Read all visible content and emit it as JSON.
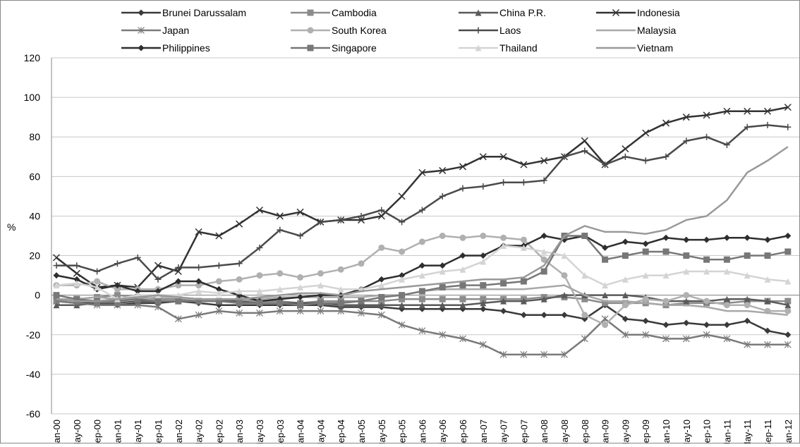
{
  "chart_data": {
    "type": "line",
    "y_label": "%",
    "categories": [
      "Jan-00",
      "May-00",
      "Sep-00",
      "Jan-01",
      "May-01",
      "Sep-01",
      "Jan-02",
      "May-02",
      "Sep-02",
      "Jan-03",
      "May-03",
      "Sep-03",
      "Jan-04",
      "May-04",
      "Sep-04",
      "Jan-05",
      "May-05",
      "Sep-05",
      "Jan-06",
      "May-06",
      "Sep-06",
      "Jan-07",
      "May-07",
      "Sep-07",
      "Jan-08",
      "May-08",
      "Sep-08",
      "Jan-09",
      "May-09",
      "Sep-09",
      "Jan-10",
      "May-10",
      "Sep-10",
      "Jan-11",
      "May-11",
      "Sep-11",
      "Jan-12"
    ],
    "ylim": [
      -60,
      120
    ],
    "yticks": [
      -60,
      -40,
      -20,
      0,
      20,
      40,
      60,
      80,
      100,
      120
    ],
    "grid": true,
    "legend": "top",
    "series": [
      {
        "name": "Brunei Darussalam",
        "color": "#3a3a3a",
        "marker": "diamond",
        "values": [
          -3,
          -4,
          -4,
          -5,
          -4,
          -4,
          -3,
          -4,
          -5,
          -5,
          -5,
          -5,
          -5,
          -5,
          -6,
          -6,
          -6,
          -7,
          -7,
          -7,
          -7,
          -7,
          -8,
          -10,
          -10,
          -10,
          -12,
          -5,
          -12,
          -13,
          -15,
          -14,
          -15,
          -15,
          -13,
          -18,
          -20
        ]
      },
      {
        "name": "Cambodia",
        "color": "#8c8c8c",
        "marker": "square",
        "values": [
          -3,
          -2,
          -1,
          0,
          -1,
          -2,
          -2,
          -3,
          -3,
          -2,
          -3,
          -3,
          -4,
          -3,
          -3,
          -3,
          -3,
          -2,
          -2,
          -2,
          -2,
          -2,
          -2,
          -2,
          -1,
          -1,
          -2,
          -4,
          -4,
          -4,
          -5,
          -4,
          -4,
          -4,
          -3,
          -3,
          -3
        ]
      },
      {
        "name": "China P.R.",
        "color": "#5a5a5a",
        "marker": "triangle",
        "values": [
          -5,
          -5,
          -4,
          -4,
          -3,
          -3,
          -3,
          -3,
          -3,
          -3,
          -4,
          -4,
          -4,
          -4,
          -5,
          -5,
          -5,
          -5,
          -5,
          -5,
          -5,
          -4,
          -3,
          -3,
          -2,
          0,
          0,
          0,
          0,
          -1,
          -3,
          -3,
          -3,
          -2,
          -2,
          -3,
          -5
        ]
      },
      {
        "name": "Indonesia",
        "color": "#333333",
        "marker": "x",
        "values": [
          19,
          11,
          4,
          5,
          4,
          15,
          12,
          32,
          30,
          36,
          43,
          40,
          42,
          37,
          38,
          38,
          40,
          50,
          62,
          63,
          65,
          70,
          70,
          66,
          68,
          70,
          78,
          66,
          74,
          82,
          87,
          90,
          91,
          93,
          93,
          93,
          95
        ]
      },
      {
        "name": "Japan",
        "color": "#7a7a7a",
        "marker": "asterisk",
        "values": [
          -3,
          -4,
          -5,
          -5,
          -5,
          -6,
          -12,
          -10,
          -8,
          -9,
          -9,
          -8,
          -8,
          -8,
          -8,
          -9,
          -10,
          -15,
          -18,
          -20,
          -22,
          -25,
          -30,
          -30,
          -30,
          -30,
          -22,
          -12,
          -20,
          -20,
          -22,
          -22,
          -20,
          -22,
          -25,
          -25,
          -25
        ]
      },
      {
        "name": "South Korea",
        "color": "#b0b0b0",
        "marker": "circle",
        "values": [
          5,
          5,
          7,
          3,
          3,
          3,
          5,
          5,
          7,
          8,
          10,
          11,
          9,
          11,
          13,
          16,
          24,
          22,
          27,
          30,
          29,
          30,
          29,
          28,
          18,
          10,
          -10,
          -15,
          -5,
          -2,
          -3,
          0,
          -3,
          -5,
          -5,
          -8,
          -8
        ]
      },
      {
        "name": "Laos",
        "color": "#4a4a4a",
        "marker": "plus",
        "values": [
          15,
          15,
          12,
          16,
          19,
          8,
          14,
          14,
          15,
          16,
          24,
          33,
          30,
          37,
          38,
          40,
          43,
          37,
          43,
          50,
          54,
          55,
          57,
          57,
          58,
          70,
          73,
          66,
          70,
          68,
          70,
          78,
          80,
          76,
          85,
          86,
          85
        ]
      },
      {
        "name": "Malaysia",
        "color": "#a8a8a8",
        "marker": "none",
        "values": [
          -2,
          -2,
          -1,
          -2,
          -2,
          -1,
          -1,
          -2,
          -2,
          -2,
          -2,
          -1,
          -1,
          -1,
          -1,
          -1,
          0,
          0,
          2,
          3,
          3,
          3,
          3,
          3,
          4,
          5,
          0,
          -3,
          -3,
          -4,
          -5,
          -5,
          -6,
          -8,
          -8,
          -9,
          -10
        ]
      },
      {
        "name": "Philippines",
        "color": "#2e2e2e",
        "marker": "diamond",
        "values": [
          10,
          8,
          3,
          5,
          2,
          2,
          7,
          7,
          3,
          0,
          -3,
          -2,
          -1,
          0,
          0,
          3,
          8,
          10,
          15,
          15,
          20,
          20,
          25,
          25,
          30,
          28,
          30,
          24,
          27,
          26,
          29,
          28,
          28,
          29,
          29,
          28,
          30
        ]
      },
      {
        "name": "Singapore",
        "color": "#777777",
        "marker": "square",
        "values": [
          0,
          -2,
          -3,
          -3,
          -2,
          -3,
          -3,
          -3,
          -3,
          -4,
          -4,
          -4,
          -5,
          -4,
          -4,
          -3,
          -1,
          0,
          2,
          4,
          5,
          5,
          6,
          7,
          12,
          30,
          30,
          18,
          20,
          22,
          22,
          20,
          18,
          18,
          20,
          20,
          22
        ]
      },
      {
        "name": "Thailand",
        "color": "#d4d4d4",
        "marker": "triangle",
        "values": [
          5,
          6,
          4,
          -2,
          0,
          0,
          0,
          2,
          1,
          2,
          2,
          3,
          4,
          5,
          3,
          3,
          5,
          8,
          10,
          12,
          13,
          17,
          25,
          24,
          22,
          20,
          10,
          5,
          8,
          10,
          10,
          12,
          12,
          12,
          10,
          8,
          7
        ]
      },
      {
        "name": "Vietnam",
        "color": "#999999",
        "marker": "none",
        "values": [
          -2,
          -3,
          -3,
          -2,
          -1,
          0,
          -1,
          -2,
          -2,
          -2,
          -1,
          0,
          1,
          1,
          0,
          2,
          3,
          4,
          5,
          6,
          7,
          8,
          8,
          9,
          15,
          30,
          35,
          32,
          32,
          31,
          33,
          38,
          40,
          48,
          62,
          68,
          75
        ]
      }
    ]
  }
}
